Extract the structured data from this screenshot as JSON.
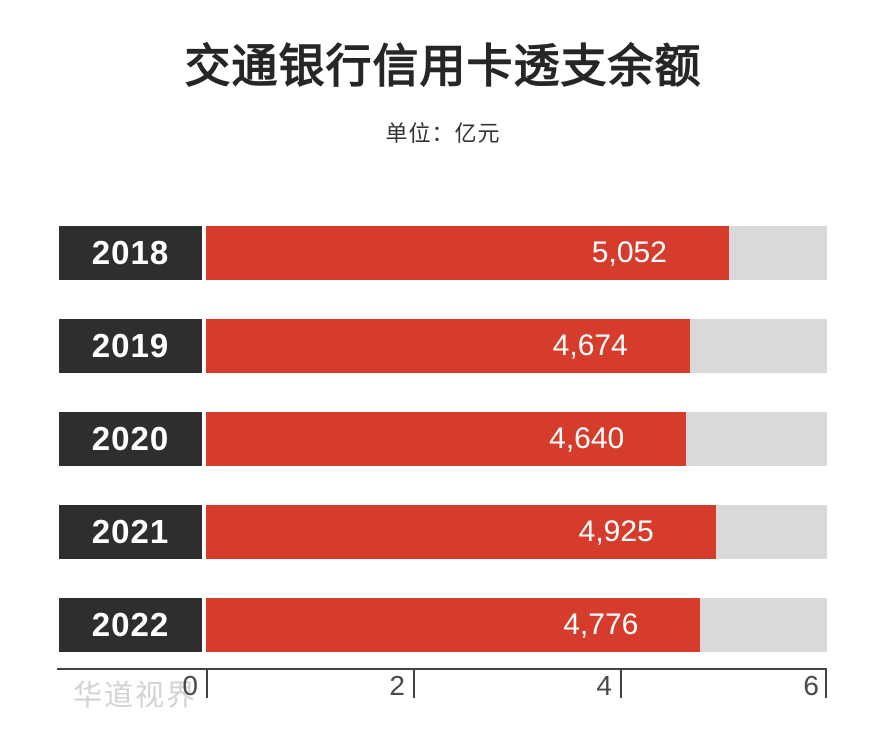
{
  "title": "交通银行信用卡透支余额",
  "subtitle": "单位：亿元",
  "watermark": "华道视界",
  "colors": {
    "title_text": "#262626",
    "subtitle_text": "#333333",
    "bar_red": "#d63c2c",
    "year_box": "#2e2e2e",
    "track_gray": "#d9d9d9",
    "value_text": "#ffffff",
    "axis_line": "#474240",
    "tick_text": "#4a4a4a",
    "watermark_text": "#cccccc"
  },
  "chart_data": {
    "type": "bar",
    "orientation": "horizontal",
    "title": "交通银行信用卡透支余额",
    "unit_label": "单位：亿元",
    "categories": [
      "2018",
      "2019",
      "2020",
      "2021",
      "2022"
    ],
    "values": [
      5052,
      4674,
      4640,
      4925,
      4776
    ],
    "value_labels": [
      "5,052",
      "4,674",
      "4,640",
      "4,925",
      "4,776"
    ],
    "xlabel": "",
    "ylabel": "",
    "xlim": [
      0,
      6000
    ],
    "x_tick_values": [
      0,
      2000,
      4000,
      6000
    ],
    "x_tick_labels": [
      "0",
      "2",
      "4",
      "6"
    ],
    "grid": false,
    "legend": false
  }
}
